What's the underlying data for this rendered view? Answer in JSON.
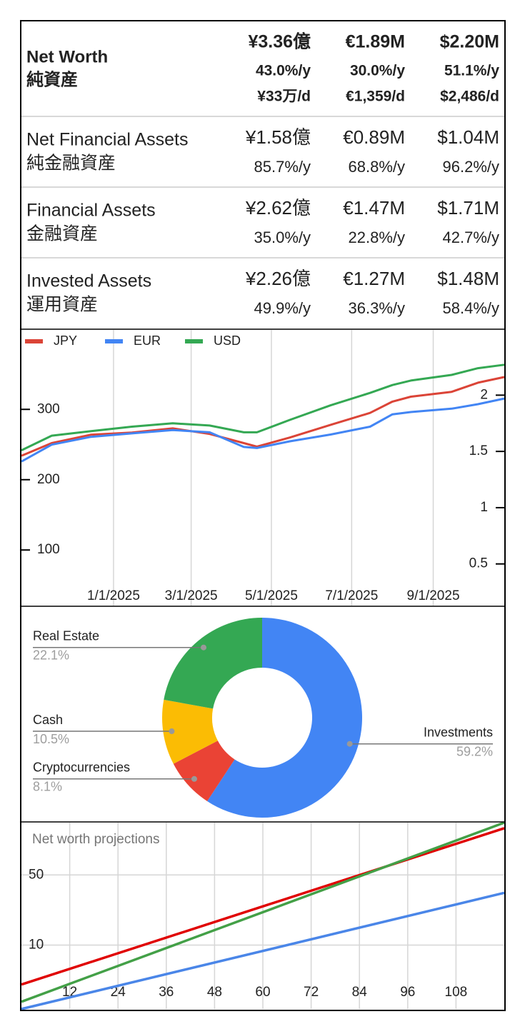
{
  "summary": {
    "rows": [
      {
        "label": "Net Worth",
        "label_ja": "純資産",
        "cells": [
          [
            "¥3.36億",
            "43.0%/y",
            "¥33万/d"
          ],
          [
            "€1.89M",
            "30.0%/y",
            "€1,359/d"
          ],
          [
            "$2.20M",
            "51.1%/y",
            "$2,486/d"
          ]
        ]
      },
      {
        "label": "Net Financial Assets",
        "label_ja": "純金融資産",
        "cells": [
          [
            "¥1.58億",
            "85.7%/y"
          ],
          [
            "€0.89M",
            "68.8%/y"
          ],
          [
            "$1.04M",
            "96.2%/y"
          ]
        ]
      },
      {
        "label": "Financial Assets",
        "label_ja": "金融資産",
        "cells": [
          [
            "¥2.62億",
            "35.0%/y"
          ],
          [
            "€1.47M",
            "22.8%/y"
          ],
          [
            "$1.71M",
            "42.7%/y"
          ]
        ]
      },
      {
        "label": "Invested Assets",
        "label_ja": "運用資産",
        "cells": [
          [
            "¥2.26億",
            "49.9%/y"
          ],
          [
            "€1.27M",
            "36.3%/y"
          ],
          [
            "$1.48M",
            "58.4%/y"
          ]
        ]
      }
    ]
  },
  "chart_data": [
    {
      "type": "line",
      "x": [
        "10/23/2024",
        "11/15/2024",
        "12/15/2024",
        "1/15/2025",
        "2/15/2025",
        "3/15/2025",
        "4/10/2025",
        "4/20/2025",
        "5/15/2025",
        "6/15/2025",
        "7/15/2025",
        "8/1/2025",
        "8/15/2025",
        "9/15/2025",
        "10/5/2025",
        "10/25/2025"
      ],
      "xlim": [
        "10/23/2024",
        "10/25/2025"
      ],
      "xticks": [
        "1/1/2025",
        "3/1/2025",
        "5/1/2025",
        "7/1/2025",
        "9/1/2025"
      ],
      "ylim": [
        21,
        413
      ],
      "yticks": [
        100,
        200,
        300
      ],
      "y2lim": [
        0.13,
        2.58
      ],
      "y2ticks": [
        0.5,
        1,
        1.5,
        2
      ],
      "legend": "top-left",
      "grid": true,
      "series": [
        {
          "name": "JPY",
          "color": "#db4437",
          "values": [
            234,
            252,
            264,
            267,
            273,
            265,
            252,
            247,
            260,
            278,
            295,
            311,
            318,
            325,
            338,
            346
          ]
        },
        {
          "name": "EUR",
          "color": "#4285f4",
          "axis": "y2",
          "values": [
            1.41,
            1.56,
            1.63,
            1.66,
            1.69,
            1.67,
            1.54,
            1.53,
            1.59,
            1.65,
            1.72,
            1.83,
            1.85,
            1.88,
            1.92,
            1.97
          ]
        },
        {
          "name": "USD",
          "color": "#34a853",
          "axis": "y2",
          "values": [
            1.51,
            1.64,
            1.68,
            1.72,
            1.75,
            1.73,
            1.67,
            1.67,
            1.78,
            1.91,
            2.02,
            2.09,
            2.13,
            2.18,
            2.24,
            2.27
          ]
        }
      ]
    },
    {
      "type": "pie",
      "categories": [
        "Investments",
        "Cryptocurrencies",
        "Cash",
        "Real Estate"
      ],
      "values": [
        59.2,
        8.1,
        10.5,
        22.1
      ],
      "value_labels": [
        "59.2%",
        "8.1%",
        "10.5%",
        "22.1%"
      ],
      "colors": [
        "#4285f4",
        "#ea4335",
        "#fbbc04",
        "#34a853"
      ],
      "donut": true
    },
    {
      "type": "line",
      "title": "Net worth projections",
      "x": [
        0,
        120
      ],
      "xlim": [
        0,
        120
      ],
      "xticks": [
        12,
        24,
        36,
        48,
        60,
        72,
        84,
        96,
        108
      ],
      "ylim": [
        2.31,
        166
      ],
      "yticks": [
        10,
        50
      ],
      "log_scale": true,
      "grid": true,
      "series": [
        {
          "color": "#e00000",
          "values": [
            4.05,
            146
          ]
        },
        {
          "color": "#43a047",
          "values": [
            2.73,
            166
          ]
        },
        {
          "color": "#4a86e8",
          "values": [
            2.31,
            33.2
          ]
        }
      ]
    }
  ]
}
